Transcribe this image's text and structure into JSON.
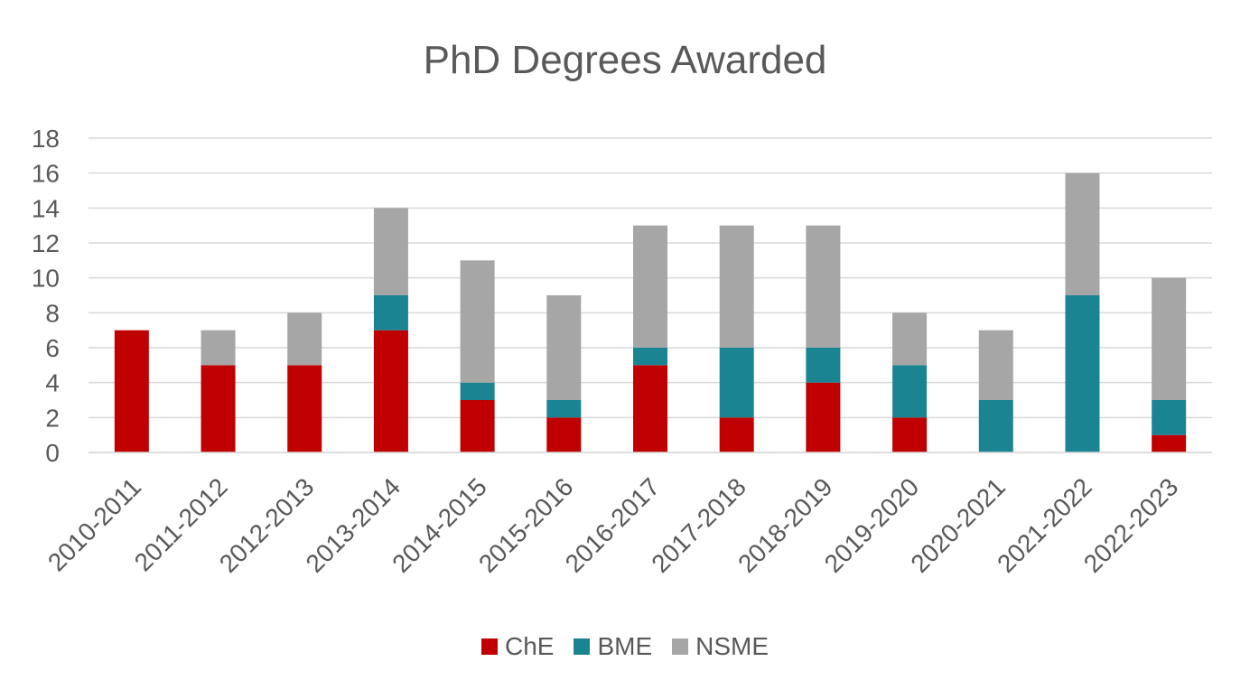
{
  "chart_data": {
    "type": "bar",
    "stacked": true,
    "title": "PhD Degrees Awarded",
    "xlabel": "",
    "ylabel": "",
    "ylim": [
      0,
      18
    ],
    "yticks": [
      0,
      2,
      4,
      6,
      8,
      10,
      12,
      14,
      16,
      18
    ],
    "grid": true,
    "legend_position": "bottom",
    "categories": [
      "2010-2011",
      "2011-2012",
      "2012-2013",
      "2013-2014",
      "2014-2015",
      "2015-2016",
      "2016-2017",
      "2017-2018",
      "2018-2019",
      "2019-2020",
      "2020-2021",
      "2021-2022",
      "2022-2023"
    ],
    "series": [
      {
        "name": "ChE",
        "color": "#c00000",
        "values": [
          7,
          5,
          5,
          7,
          3,
          2,
          5,
          2,
          4,
          2,
          0,
          0,
          1
        ]
      },
      {
        "name": "BME",
        "color": "#1b8493",
        "values": [
          0,
          0,
          0,
          2,
          1,
          1,
          1,
          4,
          2,
          3,
          3,
          9,
          2
        ]
      },
      {
        "name": "NSME",
        "color": "#a6a6a6",
        "values": [
          0,
          2,
          3,
          5,
          7,
          6,
          7,
          7,
          7,
          3,
          4,
          7,
          7
        ]
      }
    ]
  }
}
